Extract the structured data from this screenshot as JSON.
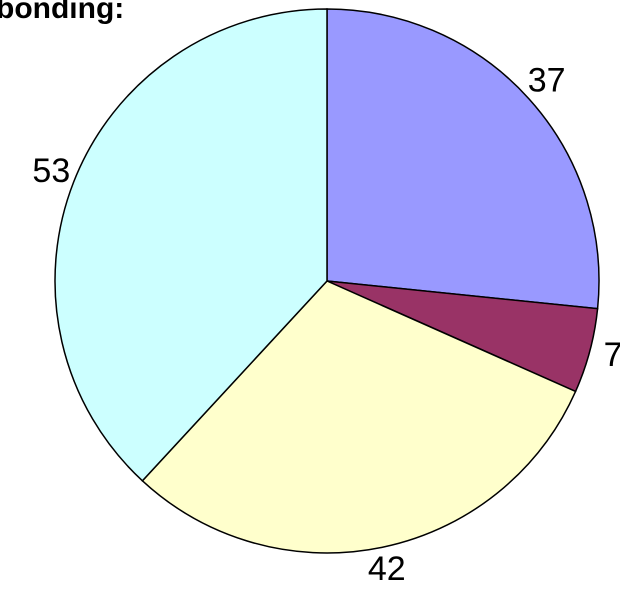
{
  "chart_data": {
    "type": "pie",
    "title": "bonding:",
    "categories": [
      null,
      null,
      null,
      null
    ],
    "values": [
      37,
      7,
      42,
      53
    ],
    "colors": [
      "#9999ff",
      "#993366",
      "#ffffcc",
      "#ccffff"
    ]
  }
}
